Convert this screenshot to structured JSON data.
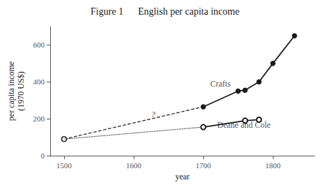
{
  "chart_data": {
    "type": "line",
    "title": "Figure 1      English per capita income",
    "xlabel": "year",
    "ylabel": "per capita income\n(1970 US$)",
    "xlim": [
      1480,
      1860
    ],
    "xticks": [
      1500,
      1600,
      1700,
      1800
    ],
    "ylim": [
      0,
      700
    ],
    "yticks": [
      0,
      200,
      400,
      600
    ],
    "grid": false,
    "color": "#1a1a1a",
    "series": [
      {
        "x": [
          1500,
          1700
        ],
        "values": [
          90,
          265
        ],
        "line_style": "dashed",
        "marker": "none"
      },
      {
        "x": [
          1700,
          1750,
          1760,
          1780,
          1800,
          1831
        ],
        "values": [
          265,
          350,
          355,
          400,
          500,
          650
        ],
        "line_style": "solid",
        "marker": "circle"
      },
      {
        "x": [
          1500,
          1700
        ],
        "values": [
          90,
          155
        ],
        "line_style": "dotted",
        "marker": "none"
      },
      {
        "x": [
          1700,
          1760,
          1780
        ],
        "values": [
          155,
          190,
          195
        ],
        "line_style": "solid",
        "marker": "open_circle"
      },
      {
        "type": "scatter",
        "x": [
          1500
        ],
        "values": [
          90
        ],
        "marker": "open_circle"
      }
    ],
    "annotations": [
      {
        "text": "?",
        "x": 1625,
        "y": 225
      },
      {
        "text": "Crafts",
        "x": 1710,
        "y": 388
      },
      {
        "text": "Deane and Cole",
        "x": 1720,
        "y": 165
      }
    ]
  }
}
